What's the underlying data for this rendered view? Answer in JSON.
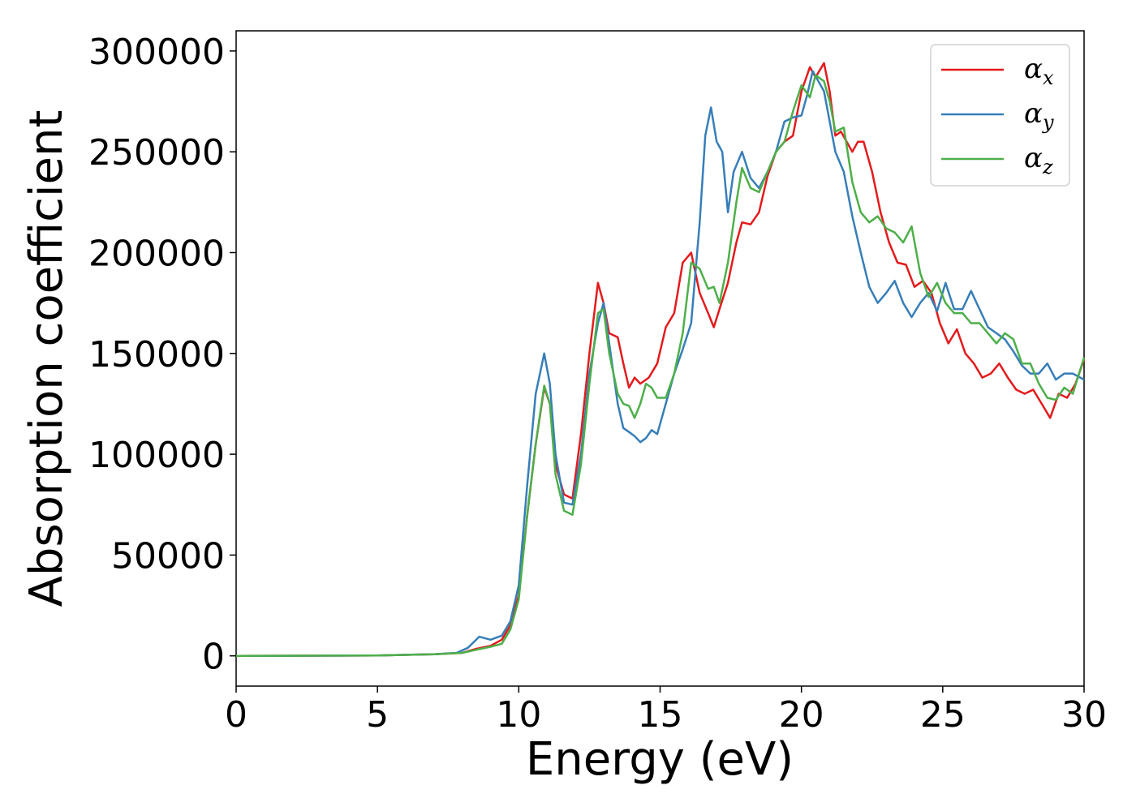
{
  "chart_data": {
    "type": "line",
    "xlabel": "Energy (eV)",
    "ylabel": "Absorption coefficient",
    "xlim": [
      0,
      30
    ],
    "ylim": [
      -15000,
      310000
    ],
    "xticks": [
      0,
      5,
      10,
      15,
      20,
      25,
      30
    ],
    "xtick_labels": [
      "0",
      "5",
      "10",
      "15",
      "20",
      "25",
      "30"
    ],
    "yticks": [
      0,
      50000,
      100000,
      150000,
      200000,
      250000,
      300000
    ],
    "ytick_labels": [
      "0",
      "50000",
      "100000",
      "150000",
      "200000",
      "250000",
      "300000"
    ],
    "grid": false,
    "legend": "top-right",
    "series": [
      {
        "name": "α",
        "sub": "x",
        "color": "#e41a1c",
        "x": [
          0,
          5,
          7,
          8,
          8.5,
          9,
          9.4,
          9.7,
          10,
          10.3,
          10.6,
          10.9,
          11.1,
          11.3,
          11.6,
          11.9,
          12.2,
          12.5,
          12.8,
          13,
          13.2,
          13.5,
          13.7,
          13.9,
          14.1,
          14.3,
          14.6,
          14.9,
          15.2,
          15.5,
          15.8,
          16.1,
          16.4,
          16.7,
          16.9,
          17.1,
          17.4,
          17.7,
          17.9,
          18.2,
          18.5,
          18.8,
          19.1,
          19.4,
          19.7,
          20,
          20.3,
          20.5,
          20.8,
          21,
          21.2,
          21.4,
          21.6,
          21.8,
          22,
          22.2,
          22.5,
          22.8,
          23.1,
          23.4,
          23.7,
          24,
          24.3,
          24.6,
          24.9,
          25.2,
          25.5,
          25.8,
          26.1,
          26.4,
          26.7,
          27,
          27.3,
          27.6,
          27.9,
          28.2,
          28.5,
          28.8,
          29.1,
          29.4,
          29.7,
          30
        ],
        "y": [
          0,
          200,
          800,
          1500,
          3500,
          5000,
          8000,
          15000,
          30000,
          70000,
          105000,
          133000,
          125000,
          95000,
          80000,
          78000,
          110000,
          150000,
          185000,
          175000,
          160000,
          158000,
          145000,
          133000,
          138000,
          135000,
          138000,
          145000,
          163000,
          170000,
          195000,
          200000,
          180000,
          170000,
          163000,
          172000,
          185000,
          205000,
          215000,
          214000,
          220000,
          238000,
          250000,
          255000,
          258000,
          280000,
          292000,
          287000,
          294000,
          280000,
          258000,
          260000,
          255000,
          250000,
          255000,
          255000,
          240000,
          220000,
          205000,
          195000,
          194000,
          183000,
          186000,
          180000,
          165000,
          155000,
          162000,
          150000,
          145000,
          138000,
          140000,
          145000,
          138000,
          132000,
          130000,
          132000,
          125000,
          118000,
          130000,
          128000,
          135000,
          147000
        ]
      },
      {
        "name": "α",
        "sub": "y",
        "color": "#377eb8",
        "x": [
          0,
          5,
          7,
          7.8,
          8.2,
          8.6,
          9,
          9.4,
          9.7,
          10,
          10.3,
          10.6,
          10.9,
          11.1,
          11.3,
          11.6,
          11.9,
          12.2,
          12.5,
          12.8,
          13,
          13.2,
          13.5,
          13.7,
          13.9,
          14.1,
          14.3,
          14.5,
          14.7,
          14.9,
          15.2,
          15.5,
          15.8,
          16.1,
          16.4,
          16.6,
          16.8,
          17,
          17.2,
          17.4,
          17.6,
          17.9,
          18.2,
          18.5,
          18.8,
          19.1,
          19.4,
          19.7,
          20,
          20.2,
          20.4,
          20.6,
          20.8,
          21,
          21.2,
          21.5,
          21.8,
          22.1,
          22.4,
          22.7,
          23,
          23.3,
          23.6,
          23.9,
          24.2,
          24.5,
          24.8,
          25.1,
          25.4,
          25.7,
          26,
          26.3,
          26.6,
          26.9,
          27.2,
          27.5,
          27.8,
          28.1,
          28.4,
          28.7,
          29,
          29.3,
          29.6,
          30
        ],
        "y": [
          0,
          200,
          800,
          1500,
          4000,
          9500,
          8000,
          10000,
          17000,
          35000,
          85000,
          130000,
          150000,
          135000,
          100000,
          76000,
          75000,
          100000,
          140000,
          165000,
          175000,
          155000,
          125000,
          113000,
          111000,
          109000,
          106000,
          108000,
          112000,
          110000,
          125000,
          140000,
          152000,
          165000,
          215000,
          258000,
          272000,
          255000,
          250000,
          220000,
          240000,
          250000,
          237000,
          232000,
          240000,
          250000,
          265000,
          267000,
          268000,
          278000,
          290000,
          285000,
          280000,
          265000,
          250000,
          240000,
          218000,
          200000,
          183000,
          175000,
          180000,
          186000,
          175000,
          168000,
          175000,
          180000,
          171000,
          185000,
          172000,
          172000,
          181000,
          172000,
          163000,
          160000,
          157000,
          151000,
          144000,
          140000,
          140000,
          145000,
          137000,
          140000,
          140000,
          137000
        ]
      },
      {
        "name": "α",
        "sub": "z",
        "color": "#4daf4a",
        "x": [
          0,
          5,
          7,
          8,
          8.5,
          9,
          9.4,
          9.7,
          10,
          10.3,
          10.6,
          10.9,
          11.1,
          11.3,
          11.6,
          11.9,
          12.2,
          12.5,
          12.8,
          13,
          13.2,
          13.5,
          13.7,
          13.9,
          14.1,
          14.3,
          14.5,
          14.7,
          14.9,
          15.2,
          15.5,
          15.8,
          16.1,
          16.4,
          16.7,
          16.9,
          17.1,
          17.4,
          17.7,
          17.9,
          18.2,
          18.5,
          18.8,
          19.1,
          19.4,
          19.7,
          20,
          20.3,
          20.5,
          20.8,
          21,
          21.2,
          21.5,
          21.8,
          22.1,
          22.4,
          22.7,
          23,
          23.3,
          23.6,
          23.9,
          24.2,
          24.5,
          24.8,
          25.1,
          25.4,
          25.7,
          26,
          26.3,
          26.6,
          26.9,
          27.2,
          27.5,
          27.8,
          28.1,
          28.4,
          28.7,
          29,
          29.3,
          29.6,
          30
        ],
        "y": [
          0,
          200,
          800,
          1500,
          3000,
          4500,
          6000,
          13000,
          28000,
          70000,
          105000,
          134000,
          125000,
          90000,
          72000,
          70000,
          95000,
          135000,
          170000,
          172000,
          150000,
          130000,
          125000,
          124000,
          118000,
          125000,
          135000,
          133000,
          128000,
          128000,
          140000,
          160000,
          195000,
          192000,
          182000,
          183000,
          175000,
          195000,
          225000,
          242000,
          232000,
          230000,
          240000,
          250000,
          255000,
          270000,
          283000,
          277000,
          288000,
          285000,
          275000,
          260000,
          262000,
          235000,
          220000,
          215000,
          218000,
          212000,
          210000,
          205000,
          213000,
          190000,
          178000,
          185000,
          175000,
          170000,
          170000,
          165000,
          165000,
          160000,
          155000,
          160000,
          157000,
          145000,
          145000,
          135000,
          128000,
          127000,
          133000,
          130000,
          148000
        ]
      }
    ]
  }
}
